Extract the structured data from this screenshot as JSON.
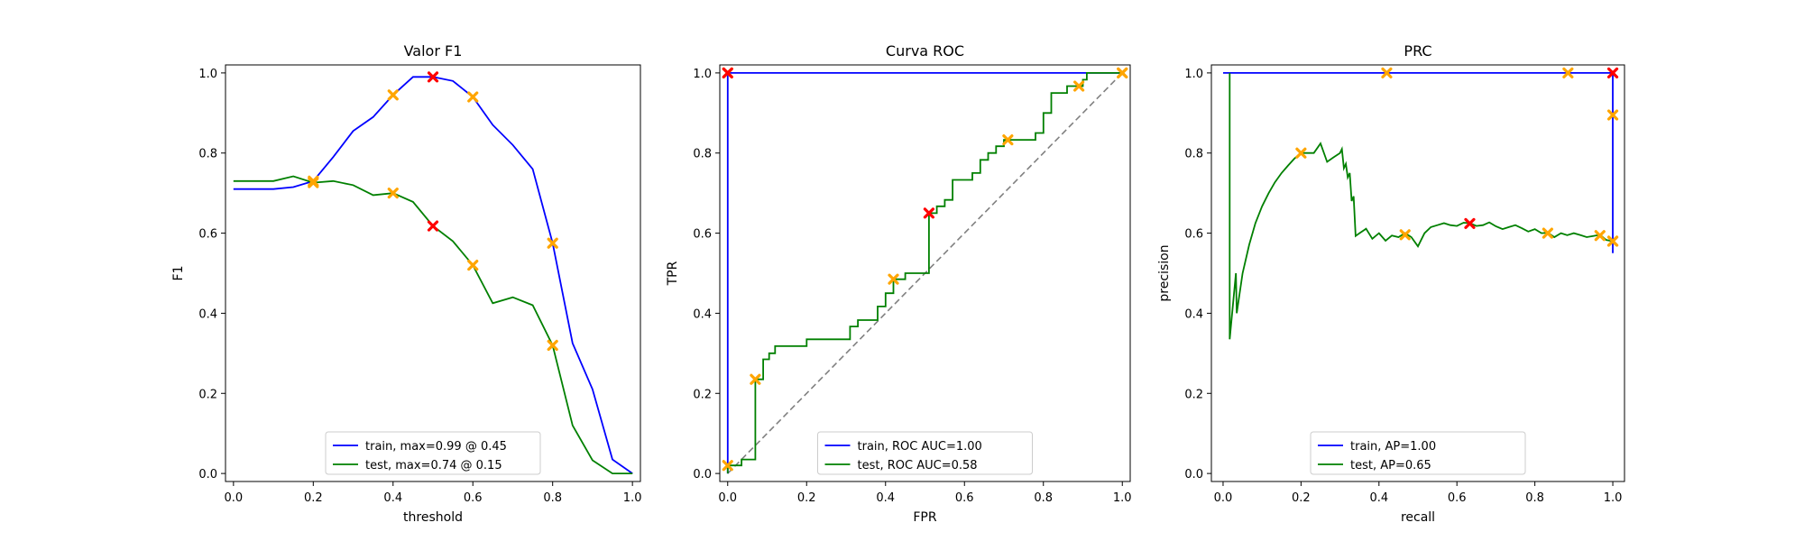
{
  "chart_data": [
    {
      "type": "line",
      "title": "Valor F1",
      "xlabel": "threshold",
      "ylabel": "F1",
      "xlim": [
        -0.02,
        1.02
      ],
      "ylim": [
        -0.02,
        1.02
      ],
      "xticks": [
        "0.0",
        "0.2",
        "0.4",
        "0.6",
        "0.8",
        "1.0"
      ],
      "yticks": [
        "0.0",
        "0.2",
        "0.4",
        "0.6",
        "0.8",
        "1.0"
      ],
      "legend_position": "lower center",
      "series": [
        {
          "name": "train, max=0.99 @ 0.45",
          "color": "#0000ff",
          "x": [
            0.0,
            0.05,
            0.1,
            0.15,
            0.2,
            0.25,
            0.3,
            0.35,
            0.4,
            0.45,
            0.5,
            0.55,
            0.6,
            0.65,
            0.7,
            0.75,
            0.8,
            0.85,
            0.9,
            0.95,
            1.0
          ],
          "y": [
            0.71,
            0.71,
            0.71,
            0.715,
            0.73,
            0.79,
            0.855,
            0.89,
            0.945,
            0.99,
            0.99,
            0.98,
            0.94,
            0.87,
            0.82,
            0.76,
            0.575,
            0.325,
            0.21,
            0.035,
            0.0
          ],
          "markers": [
            {
              "x": 0.2,
              "y": 0.73
            },
            {
              "x": 0.4,
              "y": 0.945
            },
            {
              "x": 0.6,
              "y": 0.94
            },
            {
              "x": 0.8,
              "y": 0.575
            }
          ],
          "best": {
            "x": 0.5,
            "y": 0.99
          }
        },
        {
          "name": "test, max=0.74 @ 0.15",
          "color": "#008000",
          "x": [
            0.0,
            0.05,
            0.1,
            0.15,
            0.2,
            0.25,
            0.3,
            0.35,
            0.4,
            0.45,
            0.5,
            0.55,
            0.6,
            0.65,
            0.7,
            0.75,
            0.8,
            0.85,
            0.9,
            0.95,
            1.0
          ],
          "y": [
            0.73,
            0.73,
            0.73,
            0.742,
            0.726,
            0.73,
            0.72,
            0.695,
            0.7,
            0.678,
            0.618,
            0.58,
            0.52,
            0.425,
            0.44,
            0.42,
            0.32,
            0.12,
            0.033,
            0.0,
            0.0
          ],
          "markers": [
            {
              "x": 0.2,
              "y": 0.726
            },
            {
              "x": 0.4,
              "y": 0.7
            },
            {
              "x": 0.6,
              "y": 0.52
            },
            {
              "x": 0.8,
              "y": 0.32
            }
          ],
          "best": {
            "x": 0.5,
            "y": 0.618
          }
        }
      ]
    },
    {
      "type": "line",
      "title": "Curva ROC",
      "xlabel": "FPR",
      "ylabel": "TPR",
      "xlim": [
        -0.02,
        1.02
      ],
      "ylim": [
        -0.02,
        1.02
      ],
      "xticks": [
        "0.0",
        "0.2",
        "0.4",
        "0.6",
        "0.8",
        "1.0"
      ],
      "yticks": [
        "0.0",
        "0.2",
        "0.4",
        "0.6",
        "0.8",
        "1.0"
      ],
      "legend_position": "lower center",
      "diagonal": true,
      "series": [
        {
          "name": "train, ROC AUC=1.00",
          "color": "#0000ff",
          "x": [
            0.0,
            0.0,
            1.0
          ],
          "y": [
            0.0,
            1.0,
            1.0
          ],
          "markers": [
            {
              "x": 0.0,
              "y": 1.0
            },
            {
              "x": 0.0,
              "y": 1.0
            },
            {
              "x": 1.0,
              "y": 1.0
            }
          ],
          "best": {
            "x": 0.0,
            "y": 1.0
          }
        },
        {
          "name": "test, ROC AUC=0.58",
          "color": "#008000",
          "x": [
            0.0,
            0.0,
            0.035,
            0.035,
            0.07,
            0.07,
            0.09,
            0.09,
            0.105,
            0.105,
            0.12,
            0.12,
            0.14,
            0.14,
            0.2,
            0.2,
            0.31,
            0.31,
            0.33,
            0.33,
            0.35,
            0.35,
            0.38,
            0.38,
            0.4,
            0.4,
            0.42,
            0.42,
            0.45,
            0.45,
            0.51,
            0.51,
            0.53,
            0.53,
            0.55,
            0.55,
            0.57,
            0.57,
            0.62,
            0.62,
            0.64,
            0.64,
            0.66,
            0.66,
            0.68,
            0.68,
            0.7,
            0.7,
            0.72,
            0.72,
            0.78,
            0.78,
            0.8,
            0.8,
            0.82,
            0.82,
            0.86,
            0.86,
            0.9,
            0.9,
            0.91,
            0.91,
            1.0
          ],
          "y": [
            0.0,
            0.02,
            0.02,
            0.035,
            0.035,
            0.235,
            0.235,
            0.285,
            0.285,
            0.3,
            0.3,
            0.318,
            0.318,
            0.318,
            0.318,
            0.335,
            0.335,
            0.367,
            0.367,
            0.383,
            0.383,
            0.383,
            0.383,
            0.417,
            0.417,
            0.45,
            0.45,
            0.485,
            0.485,
            0.5,
            0.5,
            0.65,
            0.65,
            0.667,
            0.667,
            0.683,
            0.683,
            0.733,
            0.733,
            0.75,
            0.75,
            0.783,
            0.783,
            0.8,
            0.8,
            0.817,
            0.817,
            0.833,
            0.833,
            0.833,
            0.833,
            0.85,
            0.85,
            0.9,
            0.9,
            0.95,
            0.95,
            0.967,
            0.967,
            0.983,
            0.983,
            1.0,
            1.0
          ],
          "markers": [
            {
              "x": 0.0,
              "y": 0.02
            },
            {
              "x": 0.07,
              "y": 0.235
            },
            {
              "x": 0.42,
              "y": 0.485
            },
            {
              "x": 0.71,
              "y": 0.833
            },
            {
              "x": 0.89,
              "y": 0.967
            },
            {
              "x": 1.0,
              "y": 1.0
            }
          ],
          "best": {
            "x": 0.51,
            "y": 0.65
          }
        }
      ]
    },
    {
      "type": "line",
      "title": "PRC",
      "xlabel": "recall",
      "ylabel": "precision",
      "xlim": [
        -0.03,
        1.03
      ],
      "ylim": [
        -0.02,
        1.02
      ],
      "xticks": [
        "0.0",
        "0.2",
        "0.4",
        "0.6",
        "0.8",
        "1.0"
      ],
      "yticks": [
        "0.0",
        "0.2",
        "0.4",
        "0.6",
        "0.8",
        "1.0"
      ],
      "legend_position": "lower center",
      "series": [
        {
          "name": "train, AP=1.00",
          "color": "#0000ff",
          "x": [
            0.0,
            1.0,
            1.0,
            1.0
          ],
          "y": [
            1.0,
            1.0,
            0.58,
            0.55
          ],
          "markers": [
            {
              "x": 0.42,
              "y": 1.0
            },
            {
              "x": 0.885,
              "y": 1.0
            },
            {
              "x": 1.0,
              "y": 0.895
            },
            {
              "x": 1.0,
              "y": 0.58
            }
          ],
          "best": {
            "x": 1.0,
            "y": 1.0
          }
        },
        {
          "name": "test, AP=0.65",
          "color": "#008000",
          "x": [
            0.017,
            0.017,
            0.017,
            0.033,
            0.035,
            0.05,
            0.067,
            0.083,
            0.1,
            0.117,
            0.133,
            0.15,
            0.167,
            0.183,
            0.2,
            0.217,
            0.233,
            0.25,
            0.267,
            0.283,
            0.3,
            0.305,
            0.31,
            0.315,
            0.32,
            0.325,
            0.33,
            0.335,
            0.34,
            0.35,
            0.367,
            0.383,
            0.4,
            0.417,
            0.433,
            0.45,
            0.467,
            0.483,
            0.5,
            0.517,
            0.533,
            0.55,
            0.567,
            0.583,
            0.6,
            0.617,
            0.633,
            0.65,
            0.667,
            0.683,
            0.7,
            0.717,
            0.733,
            0.75,
            0.767,
            0.783,
            0.8,
            0.817,
            0.833,
            0.85,
            0.867,
            0.883,
            0.9,
            0.917,
            0.933,
            0.95,
            0.967,
            0.983,
            1.0
          ],
          "y": [
            1.0,
            0.5,
            0.335,
            0.5,
            0.4,
            0.5,
            0.571,
            0.625,
            0.667,
            0.7,
            0.727,
            0.75,
            0.769,
            0.786,
            0.8,
            0.8,
            0.8,
            0.824,
            0.778,
            0.789,
            0.8,
            0.81,
            0.762,
            0.773,
            0.739,
            0.75,
            0.68,
            0.692,
            0.593,
            0.6,
            0.611,
            0.586,
            0.6,
            0.581,
            0.594,
            0.59,
            0.6,
            0.59,
            0.567,
            0.6,
            0.615,
            0.62,
            0.625,
            0.62,
            0.618,
            0.626,
            0.625,
            0.618,
            0.62,
            0.627,
            0.617,
            0.61,
            0.615,
            0.62,
            0.612,
            0.604,
            0.61,
            0.6,
            0.601,
            0.59,
            0.6,
            0.595,
            0.6,
            0.595,
            0.59,
            0.593,
            0.596,
            0.583,
            0.58
          ],
          "markers": [
            {
              "x": 0.2,
              "y": 0.8
            },
            {
              "x": 0.467,
              "y": 0.596
            },
            {
              "x": 0.833,
              "y": 0.6
            },
            {
              "x": 0.967,
              "y": 0.594
            },
            {
              "x": 1.0,
              "y": 0.58
            }
          ],
          "best": {
            "x": 0.633,
            "y": 0.624
          }
        }
      ]
    }
  ]
}
